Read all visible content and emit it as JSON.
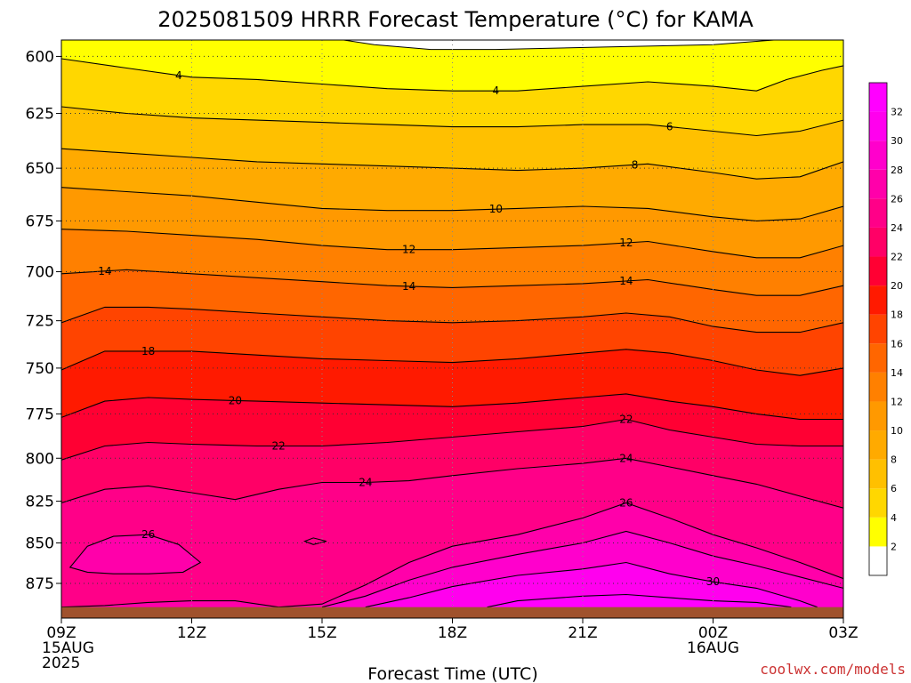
{
  "chart_data": {
    "type": "heatmap",
    "title": "2025081509 HRRR Forecast Temperature (°C) for KAMA",
    "xlabel": "Forecast Time (UTC)",
    "ylabel": "",
    "credit": "coolwx.com/models",
    "x_ticks": [
      {
        "hour": 0,
        "lines": [
          "09Z",
          "15AUG",
          "2025"
        ]
      },
      {
        "hour": 3,
        "lines": [
          "12Z"
        ]
      },
      {
        "hour": 6,
        "lines": [
          "15Z"
        ]
      },
      {
        "hour": 9,
        "lines": [
          "18Z"
        ]
      },
      {
        "hour": 12,
        "lines": [
          "21Z"
        ]
      },
      {
        "hour": 15,
        "lines": [
          "00Z",
          "16AUG"
        ]
      },
      {
        "hour": 18,
        "lines": [
          "03Z"
        ]
      }
    ],
    "x_range_hours": [
      0,
      18
    ],
    "y_ticks": [
      600,
      625,
      650,
      675,
      700,
      725,
      750,
      775,
      800,
      825,
      850,
      875
    ],
    "y_range_mb": [
      593,
      897
    ],
    "y_scale": "log-pressure",
    "grid": true,
    "surface_pressure_mb": 890,
    "colorbar": {
      "levels": [
        2,
        4,
        6,
        8,
        10,
        12,
        14,
        16,
        18,
        20,
        22,
        24,
        26,
        28,
        30,
        32
      ],
      "colors": [
        "#ffffff",
        "#ffff00",
        "#ffd700",
        "#ffc000",
        "#ffaa00",
        "#ff9900",
        "#ff8000",
        "#ff6600",
        "#ff4400",
        "#ff1a00",
        "#ff0033",
        "#ff0066",
        "#ff0088",
        "#ff00aa",
        "#ff00cc",
        "#ff00ee",
        "#ff00ff"
      ]
    },
    "contours": [
      {
        "level": 4,
        "label": "4",
        "hours": [
          0,
          1.5,
          3,
          4.5,
          6,
          7.5,
          9,
          10.5,
          12,
          13.5,
          15,
          16,
          16.7,
          17.5,
          18
        ],
        "mb": [
          601,
          605,
          609,
          610,
          612,
          614,
          615,
          615,
          613,
          611,
          613,
          615,
          610,
          606,
          604
        ],
        "labels": [
          {
            "hour": 2.7
          },
          {
            "hour": 10
          }
        ]
      },
      {
        "level": 6,
        "label": "6",
        "hours": [
          0,
          1.5,
          3,
          4.5,
          6,
          7.5,
          9,
          10.5,
          12,
          13.5,
          15,
          16,
          17,
          18
        ],
        "mb": [
          622,
          625,
          627,
          628,
          629,
          630,
          631,
          631,
          630,
          630,
          633,
          635,
          633,
          628
        ],
        "labels": [
          {
            "hour": 14
          }
        ]
      },
      {
        "level": 8,
        "label": "8",
        "hours": [
          0,
          1.5,
          3,
          4.5,
          6,
          7.5,
          9,
          10.5,
          12,
          13.5,
          15,
          16,
          17,
          18
        ],
        "mb": [
          641,
          643,
          645,
          647,
          648,
          649,
          650,
          651,
          650,
          648,
          652,
          655,
          654,
          647
        ],
        "labels": [
          {
            "hour": 13.2
          }
        ]
      },
      {
        "level": 10,
        "label": "10",
        "hours": [
          0,
          1.5,
          3,
          4.5,
          6,
          7.5,
          9,
          10.5,
          12,
          13.5,
          15,
          16,
          17,
          18
        ],
        "mb": [
          659,
          661,
          663,
          666,
          669,
          670,
          670,
          669,
          668,
          669,
          673,
          675,
          674,
          668
        ],
        "labels": [
          {
            "hour": 10
          }
        ]
      },
      {
        "level": 12,
        "label": "12",
        "hours": [
          0,
          1.5,
          3,
          4.5,
          6,
          7.5,
          9,
          10.5,
          12,
          13.5,
          15,
          16,
          17,
          18
        ],
        "mb": [
          679,
          680,
          682,
          684,
          687,
          689,
          689,
          688,
          687,
          685,
          690,
          693,
          693,
          687
        ],
        "labels": [
          {
            "hour": 8
          },
          {
            "hour": 13
          }
        ]
      },
      {
        "level": 14,
        "label": "14",
        "hours": [
          0,
          1.5,
          3,
          4.5,
          6,
          7.5,
          9,
          10.5,
          12,
          13.5,
          15,
          16,
          17,
          18
        ],
        "mb": [
          701,
          699,
          701,
          703,
          705,
          707,
          708,
          707,
          706,
          704,
          709,
          712,
          712,
          707
        ],
        "labels": [
          {
            "hour": 1
          },
          {
            "hour": 8
          },
          {
            "hour": 13
          }
        ]
      },
      {
        "level": 16,
        "label": "",
        "hours": [
          0,
          1,
          2,
          3,
          4.5,
          6,
          7.5,
          9,
          10.5,
          12,
          13,
          14,
          15,
          16,
          17,
          18
        ],
        "mb": [
          726,
          718,
          718,
          719,
          721,
          723,
          725,
          726,
          725,
          723,
          721,
          723,
          728,
          731,
          731,
          726
        ],
        "labels": []
      },
      {
        "level": 18,
        "label": "18",
        "hours": [
          0,
          1,
          2,
          3,
          4.5,
          6,
          7.5,
          9,
          10.5,
          12,
          13,
          14,
          15,
          16,
          17,
          18
        ],
        "mb": [
          751,
          741,
          741,
          741,
          743,
          745,
          746,
          747,
          745,
          742,
          740,
          742,
          746,
          751,
          754,
          750
        ],
        "labels": [
          {
            "hour": 2
          }
        ]
      },
      {
        "level": 20,
        "label": "20",
        "hours": [
          0,
          1,
          2,
          3,
          4.5,
          6,
          7.5,
          9,
          10.5,
          12,
          13,
          14,
          15,
          16,
          17,
          18
        ],
        "mb": [
          777,
          768,
          766,
          767,
          768,
          769,
          770,
          771,
          769,
          766,
          764,
          768,
          771,
          775,
          778,
          778
        ],
        "labels": [
          {
            "hour": 4
          }
        ]
      },
      {
        "level": 22,
        "label": "22",
        "hours": [
          0,
          1,
          2,
          3,
          4.5,
          6,
          7.5,
          9,
          10.5,
          12,
          13,
          14,
          15,
          16,
          17,
          18
        ],
        "mb": [
          801,
          793,
          791,
          792,
          793,
          793,
          791,
          788,
          785,
          782,
          778,
          784,
          788,
          792,
          793,
          793
        ],
        "labels": [
          {
            "hour": 5
          },
          {
            "hour": 13
          }
        ]
      },
      {
        "level": 24,
        "label": "24",
        "hours": [
          0,
          1,
          2,
          3,
          4,
          5,
          6,
          7,
          8,
          9,
          10.5,
          12,
          13,
          14,
          15,
          16,
          17,
          18
        ],
        "mb": [
          826,
          818,
          816,
          820,
          824,
          818,
          814,
          814,
          813,
          810,
          806,
          803,
          800,
          805,
          810,
          815,
          822,
          829
        ],
        "labels": [
          {
            "hour": 7
          },
          {
            "hour": 13
          }
        ]
      },
      {
        "level": 26,
        "label": "26",
        "hours": [
          0,
          1,
          2,
          3,
          4,
          5,
          6,
          7,
          8,
          9,
          10.5,
          12,
          13,
          14,
          15,
          16,
          17,
          18
        ],
        "mb": [
          890,
          889,
          887,
          886,
          886,
          890,
          888,
          876,
          862,
          852,
          845,
          835,
          826,
          835,
          845,
          853,
          862,
          872
        ],
        "labels": [
          {
            "hour": 13
          }
        ]
      },
      {
        "level": 28,
        "label": "",
        "hours": [
          6,
          7,
          8,
          9,
          10.5,
          12,
          13,
          14,
          15,
          16,
          17,
          18
        ],
        "mb": [
          890,
          883,
          873,
          865,
          857,
          850,
          843,
          850,
          858,
          864,
          871,
          878
        ],
        "labels": []
      },
      {
        "level": 30,
        "label": "30",
        "hours": [
          7,
          8,
          9,
          10.5,
          12,
          13,
          14,
          15,
          16,
          17,
          17.4
        ],
        "mb": [
          890,
          884,
          877,
          870,
          866,
          862,
          869,
          874,
          878,
          886,
          890
        ],
        "labels": [
          {
            "hour": 15
          }
        ]
      },
      {
        "level": 32,
        "label": "",
        "hours": [
          9.8,
          10.5,
          12,
          13,
          14,
          15,
          16,
          16.8
        ],
        "mb": [
          890,
          886,
          883,
          882,
          884,
          886,
          887,
          890
        ],
        "labels": []
      }
    ],
    "closed_contours": [
      {
        "level": 26,
        "label": "26",
        "hours": [
          0.2,
          0.6,
          1.2,
          2,
          2.7,
          3.2,
          2.8,
          2,
          1.2,
          0.6,
          0.2
        ],
        "mb": [
          865,
          852,
          846,
          845,
          851,
          862,
          868,
          869,
          869,
          868,
          865
        ],
        "label_hour": 2
      },
      {
        "level": 24,
        "label": "",
        "hours": [
          5.6,
          5.8,
          6.1,
          5.8,
          5.6
        ],
        "mb": [
          849,
          847,
          849,
          851,
          849
        ],
        "label_hour": null
      }
    ],
    "colorbar_tick_labels": [
      "2",
      "4",
      "6",
      "8",
      "10",
      "12",
      "14",
      "16",
      "18",
      "20",
      "22",
      "24",
      "26",
      "28",
      "30",
      "32"
    ]
  }
}
